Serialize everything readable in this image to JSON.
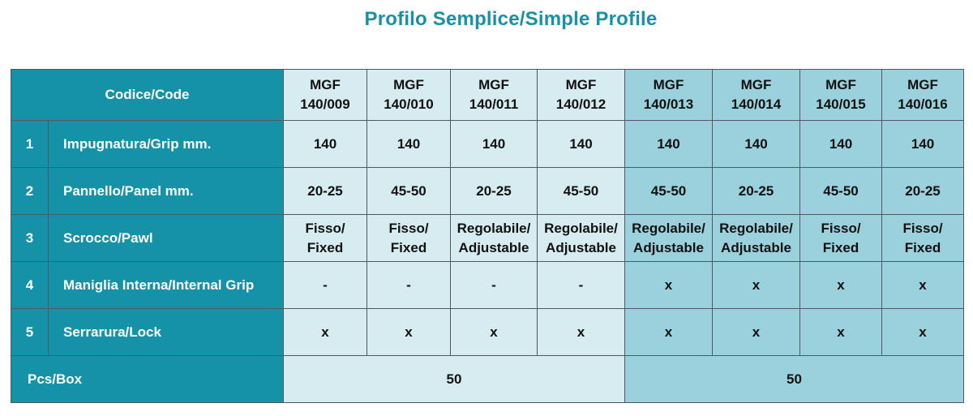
{
  "title": "Profilo Semplice/Simple Profile",
  "header": {
    "code_label": "Codice/Code",
    "codes": [
      [
        "MGF",
        "140/009"
      ],
      [
        "MGF",
        "140/010"
      ],
      [
        "MGF",
        "140/011"
      ],
      [
        "MGF",
        "140/012"
      ],
      [
        "MGF",
        "140/013"
      ],
      [
        "MGF",
        "140/014"
      ],
      [
        "MGF",
        "140/015"
      ],
      [
        "MGF",
        "140/016"
      ]
    ]
  },
  "rows": [
    {
      "num": "1",
      "label": "Impugnatura/Grip mm.",
      "values": [
        [
          "140"
        ],
        [
          "140"
        ],
        [
          "140"
        ],
        [
          "140"
        ],
        [
          "140"
        ],
        [
          "140"
        ],
        [
          "140"
        ],
        [
          "140"
        ]
      ]
    },
    {
      "num": "2",
      "label": "Pannello/Panel mm.",
      "values": [
        [
          "20-25"
        ],
        [
          "45-50"
        ],
        [
          "20-25"
        ],
        [
          "45-50"
        ],
        [
          "45-50"
        ],
        [
          "20-25"
        ],
        [
          "45-50"
        ],
        [
          "20-25"
        ]
      ]
    },
    {
      "num": "3",
      "label": "Scrocco/Pawl",
      "values": [
        [
          "Fisso/",
          "Fixed"
        ],
        [
          "Fisso/",
          "Fixed"
        ],
        [
          "Regolabile/",
          "Adjustable"
        ],
        [
          "Regolabile/",
          "Adjustable"
        ],
        [
          "Regolabile/",
          "Adjustable"
        ],
        [
          "Regolabile/",
          "Adjustable"
        ],
        [
          "Fisso/",
          "Fixed"
        ],
        [
          "Fisso/",
          "Fixed"
        ]
      ]
    },
    {
      "num": "4",
      "label": "Maniglia Interna/Internal Grip",
      "values": [
        [
          "-"
        ],
        [
          "-"
        ],
        [
          "-"
        ],
        [
          "-"
        ],
        [
          "x"
        ],
        [
          "x"
        ],
        [
          "x"
        ],
        [
          "x"
        ]
      ]
    },
    {
      "num": "5",
      "label": "Serrarura/Lock",
      "values": [
        [
          "x"
        ],
        [
          "x"
        ],
        [
          "x"
        ],
        [
          "x"
        ],
        [
          "x"
        ],
        [
          "x"
        ],
        [
          "x"
        ],
        [
          "x"
        ]
      ]
    }
  ],
  "pcs_box": {
    "label": "Pcs/Box",
    "group_values": [
      "50",
      "50"
    ]
  },
  "colors": {
    "header_teal": "#1592a8",
    "light_cell": "#d6ecf1",
    "dark_cell": "#9bd1dd",
    "title_color": "#1b8fa6"
  }
}
